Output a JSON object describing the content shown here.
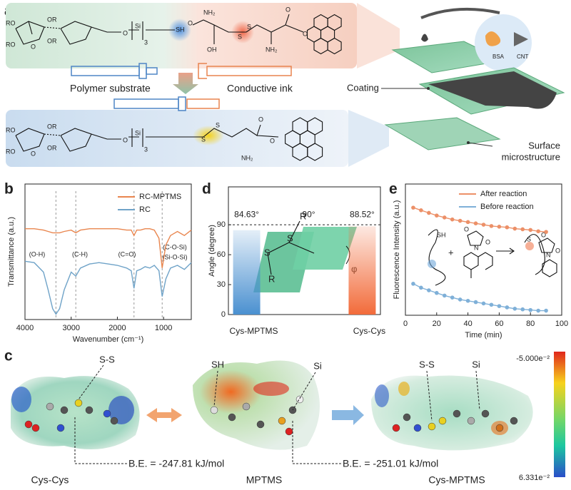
{
  "panel_labels": [
    "a",
    "b",
    "c",
    "d",
    "e"
  ],
  "panel_a": {
    "substrate_label": "Polymer substrate",
    "ink_label": "Conductive ink",
    "coating_label": "Coating",
    "inset_labels": [
      "BSA",
      "CNT"
    ],
    "surface_label": [
      "Surface",
      "microstructure"
    ],
    "top_left_atoms": [
      "RO",
      "RO",
      "OR",
      "O",
      "OR",
      "O",
      "Si",
      "3",
      "SH"
    ],
    "top_mid_atoms": [
      "NH₂",
      "O",
      "OH",
      "S",
      "S",
      "NH₂",
      "O",
      "O"
    ],
    "bottom_atoms": [
      "RO",
      "RO",
      "OR",
      "O",
      "OR",
      "O",
      "Si",
      "3",
      "S",
      "S",
      "O",
      "NH₂",
      "O"
    ]
  },
  "panel_c": {
    "names": [
      "Cys-Cys",
      "MPTMS",
      "Cys-MPTMS"
    ],
    "binding_energies": [
      "B.E. = -247.81 kJ/mol",
      "B.E. = -251.01 kJ/mol"
    ],
    "pointers": [
      "S-S",
      "SH",
      "Si",
      "S-S",
      "Si"
    ],
    "colorbar": [
      "-5.000e⁻²",
      "6.331e⁻²"
    ]
  },
  "chart_data": [
    {
      "type": "line",
      "xlabel": "Wavenumber (cm⁻¹)",
      "ylabel": "Transmittance (a.u.)",
      "x": [
        4000,
        3800,
        3600,
        3500,
        3400,
        3330,
        3250,
        3150,
        3000,
        2900,
        2800,
        2600,
        2400,
        2200,
        2000,
        1800,
        1700,
        1640,
        1580,
        1500,
        1400,
        1300,
        1200,
        1100,
        1030,
        950,
        850,
        700,
        550,
        400
      ],
      "series": [
        {
          "name": "RC-MPTMS",
          "color": "#e9864f",
          "values": [
            67,
            67,
            66,
            65,
            64,
            64,
            64,
            65,
            66,
            64,
            66,
            67,
            67,
            67,
            67,
            66,
            66,
            62,
            66,
            66,
            67,
            67,
            66,
            60,
            38,
            55,
            62,
            65,
            62,
            66
          ]
        },
        {
          "name": "RC",
          "color": "#6fa3c8",
          "values": [
            43,
            42,
            35,
            22,
            8,
            4,
            8,
            22,
            35,
            32,
            38,
            41,
            42,
            41,
            40,
            38,
            36,
            23,
            36,
            37,
            39,
            38,
            40,
            36,
            17,
            30,
            38,
            40,
            37,
            42
          ]
        }
      ],
      "xlim": [
        4000,
        400
      ],
      "xticks": [
        4000,
        3000,
        2000,
        1000
      ],
      "ylim": [
        0,
        100
      ],
      "marker_lines": [
        3330,
        2900,
        1640,
        1030
      ],
      "annotations": [
        "(O-H)",
        "(C-H)",
        "(C=O)",
        "(C-O-Si)",
        "(Si-O-Si)"
      ]
    },
    {
      "type": "bar",
      "ylabel": "Angle (degree)",
      "categories": [
        "Cys-MPTMS",
        "Cys-Cys"
      ],
      "values": [
        84.63,
        88.52
      ],
      "value_labels": [
        "84.63°",
        "88.52°"
      ],
      "colors": [
        "#4a90d0",
        "#f26b3a"
      ],
      "ylim": [
        0,
        128
      ],
      "yticks": [
        0,
        30,
        60,
        90
      ],
      "reference": {
        "value": 90,
        "label": "90°"
      },
      "inset_labels": [
        "S",
        "S",
        "R",
        "R",
        "φ"
      ]
    },
    {
      "type": "line",
      "markers": true,
      "xlabel": "Time (min)",
      "ylabel": "Fluorescence Intensity (a.u.)",
      "x": [
        5,
        10,
        15,
        20,
        25,
        30,
        35,
        40,
        45,
        50,
        55,
        60,
        65,
        70,
        75,
        80,
        85,
        90
      ],
      "series": [
        {
          "name": "After reaction",
          "color": "#ec9068",
          "values": [
            82,
            80,
            78,
            76,
            74.5,
            73,
            72,
            71,
            70,
            69,
            68,
            67.5,
            67,
            66,
            65.5,
            65,
            64,
            63.5
          ]
        },
        {
          "name": "Before reaction",
          "color": "#7fb0d8",
          "values": [
            24,
            21,
            19,
            17,
            15,
            13.5,
            12,
            11,
            10,
            9,
            8,
            7,
            6,
            5,
            4.5,
            4,
            3.5,
            3.5
          ]
        }
      ],
      "xlim": [
        0,
        100
      ],
      "xticks": [
        0,
        20,
        40,
        60,
        80,
        100
      ],
      "ylim": [
        0,
        100
      ],
      "inset_labels": [
        "SH",
        "+",
        "O",
        "O",
        "N",
        "S",
        "O",
        "O",
        "N"
      ]
    }
  ]
}
